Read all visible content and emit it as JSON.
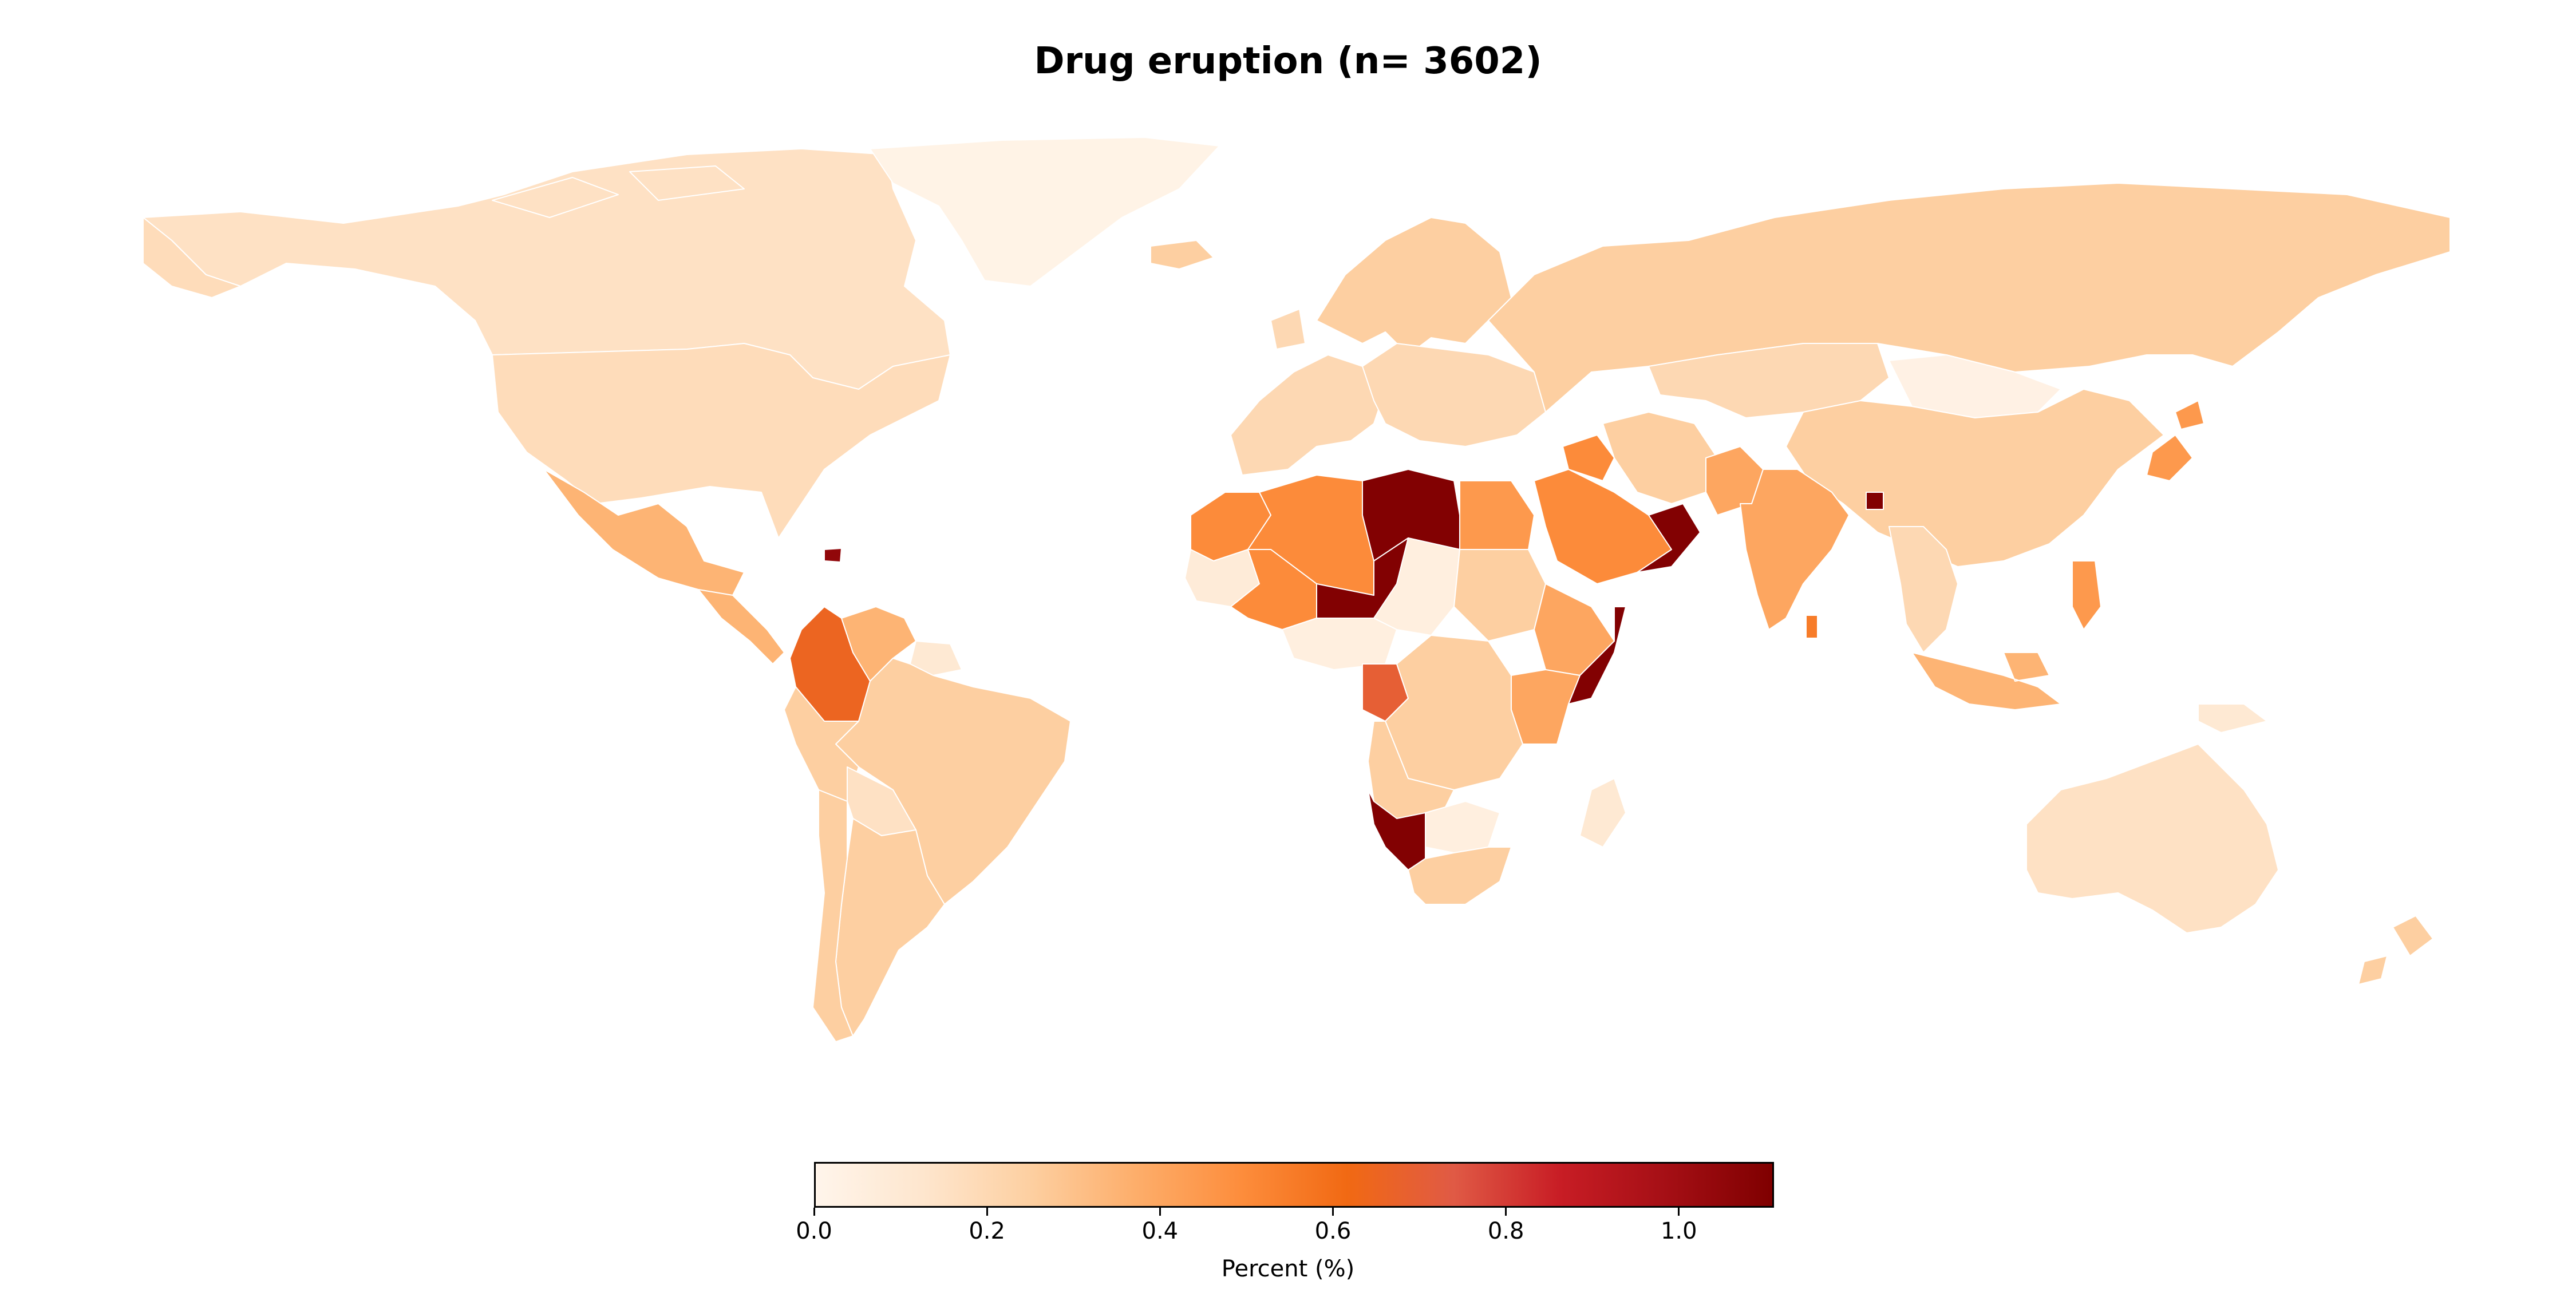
{
  "title": "Drug eruption (n= 3602)",
  "colorbar": {
    "label": "Percent (%)",
    "min": 0.0,
    "max": 1.11,
    "colormap": [
      "#fff5eb",
      "#fee6ce",
      "#fdd0a2",
      "#fdae6b",
      "#fd8d3c",
      "#f16913",
      "#e05a45",
      "#c81d25",
      "#a50f15",
      "#7f0000"
    ],
    "ticks": [
      {
        "value": 0.0,
        "label": "0.0"
      },
      {
        "value": 0.2,
        "label": "0.2"
      },
      {
        "value": 0.4,
        "label": "0.4"
      },
      {
        "value": 0.6,
        "label": "0.6"
      },
      {
        "value": 0.8,
        "label": "0.8"
      },
      {
        "value": 1.0,
        "label": "1.0"
      }
    ]
  },
  "chart_data": {
    "type": "choropleth",
    "value_unit": "Percent (%)",
    "regions": [
      {
        "name": "Canada",
        "value": 0.15
      },
      {
        "name": "United States",
        "value": 0.18
      },
      {
        "name": "Greenland",
        "value": 0.02
      },
      {
        "name": "Mexico",
        "value": 0.35
      },
      {
        "name": "Central America",
        "value": 0.35
      },
      {
        "name": "Haiti",
        "value": 1.05
      },
      {
        "name": "Colombia",
        "value": 0.65
      },
      {
        "name": "Venezuela",
        "value": 0.35
      },
      {
        "name": "Guianas",
        "value": 0.1
      },
      {
        "name": "Brazil",
        "value": 0.25
      },
      {
        "name": "Peru",
        "value": 0.25
      },
      {
        "name": "Bolivia",
        "value": 0.15
      },
      {
        "name": "Argentina",
        "value": 0.25
      },
      {
        "name": "Chile",
        "value": 0.25
      },
      {
        "name": "Iceland",
        "value": 0.25
      },
      {
        "name": "Scandinavia",
        "value": 0.25
      },
      {
        "name": "Western Europe",
        "value": 0.2
      },
      {
        "name": "Eastern Europe",
        "value": 0.2
      },
      {
        "name": "Russia",
        "value": 0.25
      },
      {
        "name": "Kazakhstan",
        "value": 0.2
      },
      {
        "name": "Mongolia",
        "value": 0.03
      },
      {
        "name": "China",
        "value": 0.25
      },
      {
        "name": "Japan",
        "value": 0.45
      },
      {
        "name": "Morocco",
        "value": 0.5
      },
      {
        "name": "Algeria",
        "value": 0.5
      },
      {
        "name": "Libya",
        "value": 1.1
      },
      {
        "name": "Egypt",
        "value": 0.45
      },
      {
        "name": "Mauritania",
        "value": 0.08
      },
      {
        "name": "Mali",
        "value": 0.5
      },
      {
        "name": "Niger",
        "value": 1.1
      },
      {
        "name": "Chad",
        "value": 0.05
      },
      {
        "name": "Sudan",
        "value": 0.25
      },
      {
        "name": "Nigeria",
        "value": 0.05
      },
      {
        "name": "Ethiopia",
        "value": 0.4
      },
      {
        "name": "Somalia",
        "value": 1.1
      },
      {
        "name": "Kenya",
        "value": 0.4
      },
      {
        "name": "Congo",
        "value": 0.7
      },
      {
        "name": "DR Congo",
        "value": 0.25
      },
      {
        "name": "Angola",
        "value": 0.25
      },
      {
        "name": "Namibia",
        "value": 1.1
      },
      {
        "name": "Botswana",
        "value": 0.05
      },
      {
        "name": "South Africa",
        "value": 0.25
      },
      {
        "name": "Madagascar",
        "value": 0.1
      },
      {
        "name": "Saudi Arabia",
        "value": 0.5
      },
      {
        "name": "Iraq",
        "value": 0.5
      },
      {
        "name": "Oman",
        "value": 1.1
      },
      {
        "name": "Iran",
        "value": 0.25
      },
      {
        "name": "Pakistan",
        "value": 0.4
      },
      {
        "name": "India",
        "value": 0.4
      },
      {
        "name": "Bangladesh",
        "value": 1.1
      },
      {
        "name": "Sri Lanka",
        "value": 0.55
      },
      {
        "name": "Southeast Asia",
        "value": 0.2
      },
      {
        "name": "Indonesia",
        "value": 0.35
      },
      {
        "name": "Philippines",
        "value": 0.45
      },
      {
        "name": "Papua New Guinea",
        "value": 0.1
      },
      {
        "name": "Australia",
        "value": 0.15
      },
      {
        "name": "New Zealand",
        "value": 0.25
      }
    ]
  }
}
